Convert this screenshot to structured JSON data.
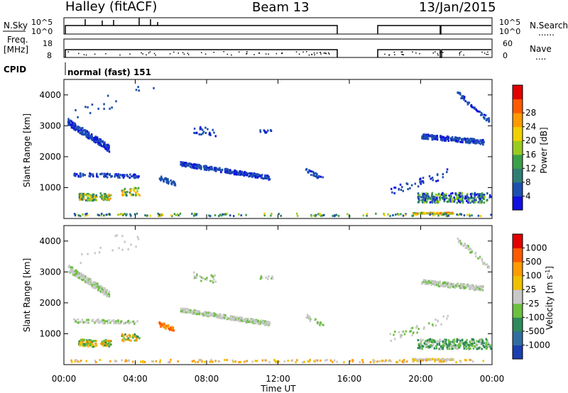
{
  "header": {
    "title_left": "Halley (fitACF)",
    "title_center": "Beam 13",
    "title_right": "13/Jan/2015"
  },
  "panels": {
    "nsky_label": "N.Sky",
    "nsearch_label": "N.Search",
    "nsearch_dots": "......",
    "freq_label_1": "Freq.",
    "freq_label_2": "[MHz]",
    "nave_label": "Nave",
    "nave_dots": "....",
    "cpid_label": "CPID",
    "cpid_value": "normal (fast) 151",
    "nsky_ticks": [
      "10^5",
      "10^0"
    ],
    "nsearch_ticks": [
      "10^5",
      "10^0"
    ],
    "freq_ticks": [
      "18",
      "8"
    ],
    "nave_ticks": [
      "60",
      "0"
    ]
  },
  "chart_data": [
    {
      "type": "heatmap",
      "name": "power",
      "ylabel": "Slant Range [km]",
      "xlabel": "",
      "ylim": [
        0,
        4500
      ],
      "xlim": [
        0,
        24
      ],
      "y_ticks": [
        "1000",
        "2000",
        "3000",
        "4000"
      ],
      "x_ticks": [
        "00:00",
        "04:00",
        "08:00",
        "12:00",
        "16:00",
        "20:00",
        "00:00"
      ],
      "colorbar_label": "Power [dB]",
      "colorbar_ticks": [
        "4",
        "8",
        "12",
        "16",
        "20",
        "24",
        "28"
      ],
      "colorbar_colors": [
        "#1010e0",
        "#1d4fb0",
        "#2e7d73",
        "#3aa04a",
        "#9acb1f",
        "#f0d000",
        "#ff9a00",
        "#ff5a00",
        "#e00000"
      ]
    },
    {
      "type": "heatmap",
      "name": "velocity",
      "ylabel": "Slant Range [km]",
      "xlabel": "Time UT",
      "ylim": [
        0,
        4500
      ],
      "xlim": [
        0,
        24
      ],
      "y_ticks": [
        "1000",
        "2000",
        "3000",
        "4000"
      ],
      "x_ticks": [
        "00:00",
        "04:00",
        "08:00",
        "12:00",
        "16:00",
        "20:00",
        "00:00"
      ],
      "colorbar_label": "Velocity [m s",
      "colorbar_label_sup": "-1",
      "colorbar_label_end": "]",
      "colorbar_ticks": [
        "1000",
        "500",
        "100",
        "25",
        "-25",
        "-100",
        "-500",
        "-1000"
      ],
      "colorbar_colors": [
        "#1a3fb0",
        "#2f6da0",
        "#2e8a5a",
        "#6cc040",
        "#c8c8c8",
        "#f0c000",
        "#ff9a00",
        "#ff5a00",
        "#e00000"
      ]
    }
  ]
}
